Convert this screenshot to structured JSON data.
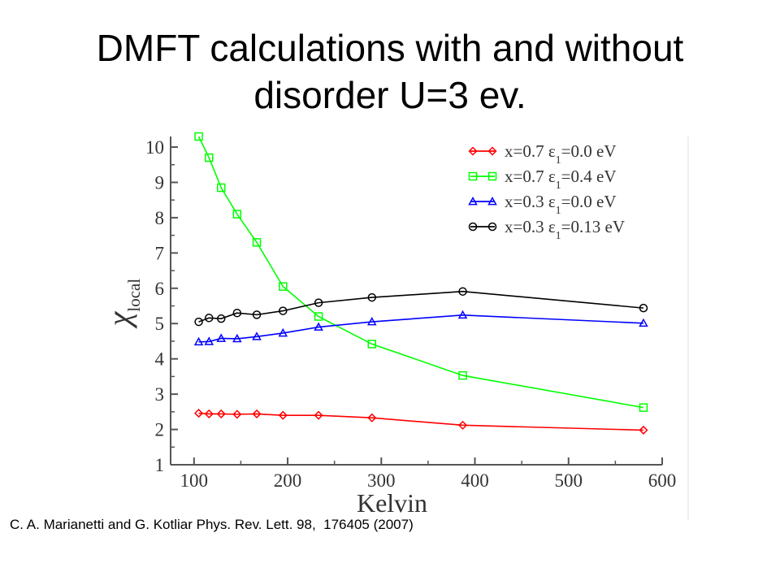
{
  "slide": {
    "title_line1": "DMFT calculations with and without",
    "title_line2": "disorder U=3 ev.",
    "citation": "C. A. Marianetti and G. Kotliar Phys. Rev. Lett. 98,  176405 (2007)"
  },
  "chart_data": {
    "type": "line",
    "xlabel": "Kelvin",
    "ylabel": "χ",
    "ylabel_subscript": "local",
    "xlim": [
      75,
      600
    ],
    "ylim": [
      1,
      10.3
    ],
    "xticks": [
      100,
      200,
      300,
      400,
      500,
      600
    ],
    "yticks": [
      1,
      2,
      3,
      4,
      5,
      6,
      7,
      8,
      9,
      10
    ],
    "grid": false,
    "legend_position": "top-right",
    "series": [
      {
        "name": "x=0.7 ε1=0.0 eV",
        "name_parts": {
          "pre": "x=0.7 ε",
          "sub": "1",
          "post": "=0.0 eV"
        },
        "color": "#ff0000",
        "marker": "diamond",
        "x": [
          105,
          116,
          129,
          146,
          167,
          195,
          233,
          290,
          387,
          580
        ],
        "y": [
          2.46,
          2.44,
          2.44,
          2.43,
          2.44,
          2.4,
          2.4,
          2.33,
          2.12,
          1.98
        ]
      },
      {
        "name": "x=0.7 ε1=0.4 eV",
        "name_parts": {
          "pre": "x=0.7 ε",
          "sub": "1",
          "post": "=0.4 eV"
        },
        "color": "#00ff00",
        "marker": "square",
        "x": [
          105,
          116,
          129,
          146,
          167,
          195,
          233,
          290,
          387,
          580
        ],
        "y": [
          10.3,
          9.7,
          8.85,
          8.1,
          7.3,
          6.05,
          5.2,
          4.42,
          3.53,
          2.62
        ]
      },
      {
        "name": "x=0.3 ε1=0.0 eV",
        "name_parts": {
          "pre": "x=0.3 ε",
          "sub": "1",
          "post": "=0.0 eV"
        },
        "color": "#0000ff",
        "marker": "triangle",
        "x": [
          105,
          116,
          129,
          146,
          167,
          195,
          233,
          290,
          387,
          580
        ],
        "y": [
          4.48,
          4.49,
          4.58,
          4.57,
          4.63,
          4.73,
          4.9,
          5.05,
          5.24,
          5.01
        ]
      },
      {
        "name": "x=0.3 ε1=0.13 eV",
        "name_parts": {
          "pre": "x=0.3 ε",
          "sub": "1",
          "post": "=0.13 eV"
        },
        "color": "#000000",
        "marker": "circle",
        "x": [
          105,
          116,
          129,
          146,
          167,
          195,
          233,
          290,
          387,
          580
        ],
        "y": [
          5.05,
          5.16,
          5.14,
          5.3,
          5.25,
          5.36,
          5.59,
          5.74,
          5.91,
          5.44
        ]
      }
    ]
  }
}
